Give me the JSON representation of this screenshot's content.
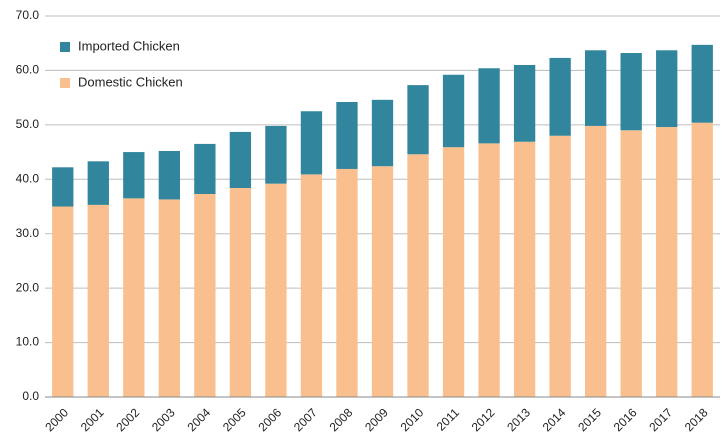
{
  "chart_data": {
    "type": "stacked_bar",
    "categories": [
      "2000",
      "2001",
      "2002",
      "2003",
      "2004",
      "2005",
      "2006",
      "2007",
      "2008",
      "2009",
      "2010",
      "2011",
      "2012",
      "2013",
      "2014",
      "2015",
      "2016",
      "2017",
      "2018"
    ],
    "series": [
      {
        "name": "Domestic Chicken",
        "color": "#f9bf8f",
        "values": [
          35.0,
          35.3,
          36.5,
          36.3,
          37.3,
          38.4,
          39.2,
          40.9,
          41.9,
          42.4,
          44.6,
          45.9,
          46.6,
          46.9,
          48.0,
          49.8,
          49.0,
          49.6,
          50.4
        ]
      },
      {
        "name": "Imported Chicken",
        "color": "#31859c",
        "values": [
          7.2,
          8.0,
          8.5,
          8.9,
          9.2,
          10.3,
          10.6,
          11.6,
          12.3,
          12.2,
          12.7,
          13.3,
          13.8,
          14.1,
          14.3,
          13.9,
          14.2,
          14.1,
          14.3
        ]
      }
    ],
    "ylim": [
      0,
      70
    ],
    "yticks": [
      {
        "value": 0,
        "label": "0.0"
      },
      {
        "value": 10,
        "label": "10.0"
      },
      {
        "value": 20,
        "label": "20.0"
      },
      {
        "value": 30,
        "label": "30.0"
      },
      {
        "value": 40,
        "label": "40.0"
      },
      {
        "value": 50,
        "label": "50.0"
      },
      {
        "value": 60,
        "label": "60.0"
      },
      {
        "value": 70,
        "label": "70.0"
      }
    ],
    "grid": true,
    "legend": "top-left"
  }
}
